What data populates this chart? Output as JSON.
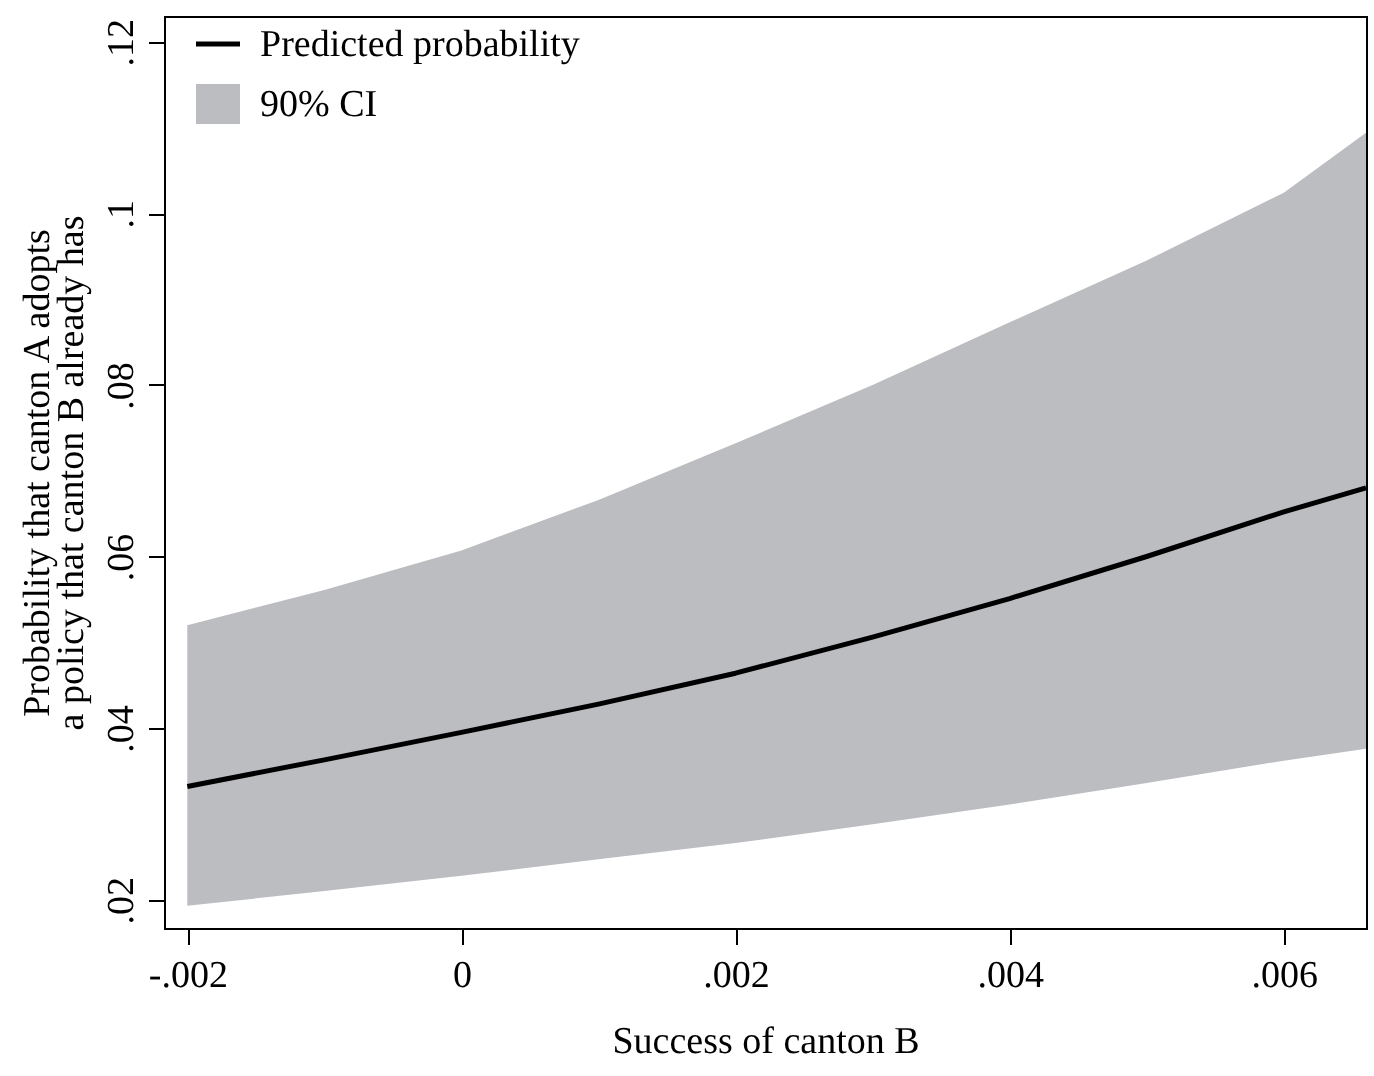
{
  "chart_data": {
    "type": "line",
    "xlabel": "Success of canton B",
    "ylabel": "Probability that canton A adopts\na policy that canton B already has",
    "x": [
      -0.002,
      -0.001,
      0,
      0.001,
      0.002,
      0.003,
      0.004,
      0.005,
      0.006,
      0.0066
    ],
    "series": [
      {
        "name": "Predicted probability",
        "type": "line",
        "color": "#000000",
        "values": [
          0.0332,
          0.0363,
          0.0395,
          0.0428,
          0.0464,
          0.0506,
          0.0551,
          0.06,
          0.0652,
          0.068
        ],
        "upper": [
          0.052,
          0.0561,
          0.0607,
          0.0666,
          0.0732,
          0.08,
          0.0873,
          0.0945,
          0.1024,
          0.1094
        ],
        "lower": [
          0.0193,
          0.021,
          0.0228,
          0.0247,
          0.0266,
          0.0288,
          0.0311,
          0.0336,
          0.0362,
          0.0376
        ]
      }
    ],
    "xlim": [
      -0.00217,
      0.0066
    ],
    "ylim": [
      0.0167,
      0.123
    ],
    "xticks": [
      {
        "value": -0.002,
        "label": "-.002"
      },
      0,
      {
        "value": 0.002,
        "label": ".002"
      },
      {
        "value": 0.004,
        "label": ".004"
      },
      {
        "value": 0.006,
        "label": ".006"
      }
    ],
    "yticks": [
      {
        "value": 0.02,
        "label": ".02"
      },
      {
        "value": 0.04,
        "label": ".04"
      },
      {
        "value": 0.06,
        "label": ".06"
      },
      {
        "value": 0.08,
        "label": ".08"
      },
      {
        "value": 0.1,
        "label": ".1"
      },
      {
        "value": 0.12,
        "label": ".12"
      }
    ],
    "annotations": [
      "90% CI"
    ],
    "grid": false,
    "legend": "top left"
  }
}
